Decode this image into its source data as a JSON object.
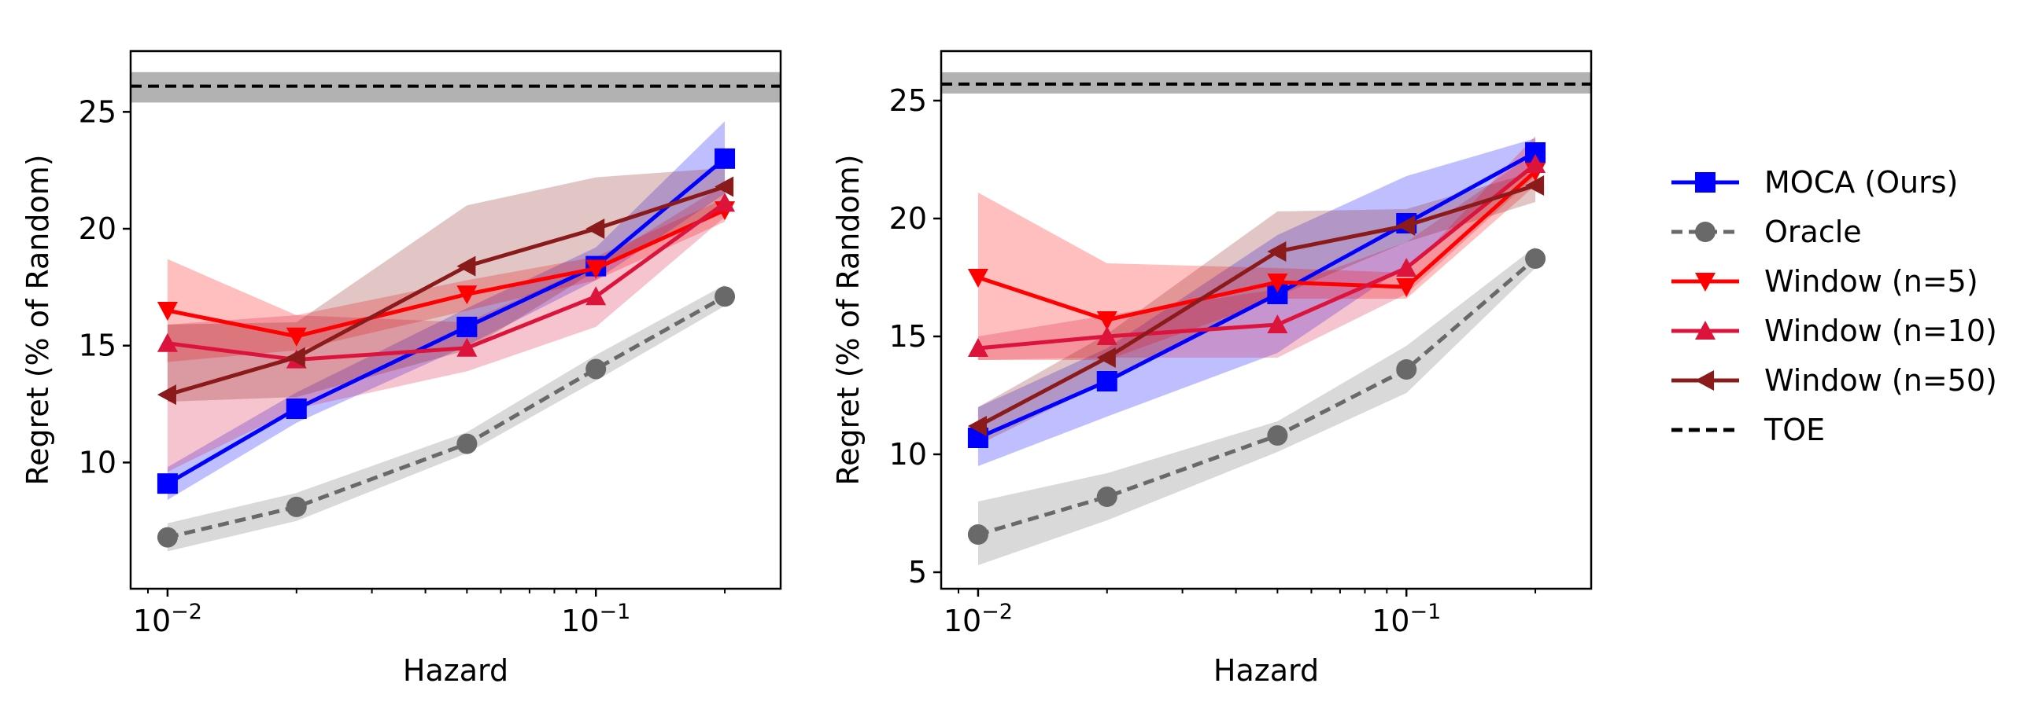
{
  "chart_data": [
    {
      "type": "line",
      "xscale": "log",
      "xlabel": "Hazard",
      "ylabel": "Regret (% of Random)",
      "xlim": [
        0.0082,
        0.27
      ],
      "ylim": [
        4.6,
        27.6
      ],
      "yticks": [
        10,
        15,
        20,
        25
      ],
      "xticks": [
        {
          "value": 0.01,
          "base": "10",
          "exp": "−2"
        },
        {
          "value": 0.1,
          "base": "10",
          "exp": "−1"
        }
      ],
      "x": [
        0.01,
        0.02,
        0.05,
        0.1,
        0.2
      ],
      "series": [
        {
          "name": "MOCA (Ours)",
          "color": "#0000ff",
          "marker": "square",
          "dash": "solid",
          "values": [
            9.1,
            12.3,
            15.8,
            18.4,
            23.0
          ],
          "band_lower": [
            8.4,
            11.7,
            15.0,
            17.8,
            21.5
          ],
          "band_upper": [
            9.8,
            13.0,
            16.6,
            19.2,
            24.6
          ]
        },
        {
          "name": "Oracle",
          "color": "#696969",
          "marker": "circle",
          "dash": "dashed",
          "values": [
            6.8,
            8.1,
            10.8,
            14.0,
            17.1
          ],
          "band_lower": [
            6.2,
            7.5,
            10.4,
            13.5,
            16.7
          ],
          "band_upper": [
            7.4,
            8.7,
            11.3,
            14.6,
            17.6
          ]
        },
        {
          "name": "Window (n=5)",
          "color": "#ff0000",
          "marker": "triangle-down",
          "dash": "solid",
          "values": [
            16.5,
            15.4,
            17.2,
            18.3,
            20.8
          ],
          "band_lower": [
            14.3,
            14.8,
            16.5,
            17.8,
            20.3
          ],
          "band_upper": [
            18.7,
            16.3,
            17.8,
            18.8,
            21.3
          ]
        },
        {
          "name": "Window (n=10)",
          "color": "#dc143c",
          "marker": "triangle-up",
          "dash": "solid",
          "values": [
            15.1,
            14.4,
            14.9,
            17.1,
            21.1
          ],
          "band_lower": [
            9.6,
            12.3,
            13.9,
            15.8,
            20.5
          ],
          "band_upper": [
            15.9,
            16.3,
            16.0,
            18.5,
            21.9
          ]
        },
        {
          "name": "Window (n=50)",
          "color": "#8b1a1a",
          "marker": "triangle-left",
          "dash": "solid",
          "values": [
            12.9,
            14.5,
            18.4,
            20.0,
            21.8
          ],
          "band_lower": [
            12.6,
            12.8,
            14.8,
            18.2,
            20.8
          ],
          "band_upper": [
            15.9,
            16.0,
            21.0,
            22.2,
            22.6
          ]
        }
      ],
      "reference": {
        "name": "TOE",
        "color": "#000000",
        "value": 26.1,
        "band": [
          25.4,
          26.7
        ]
      }
    },
    {
      "type": "line",
      "xscale": "log",
      "xlabel": "Hazard",
      "ylabel": "Regret (% of Random)",
      "xlim": [
        0.0082,
        0.27
      ],
      "ylim": [
        4.3,
        27.1
      ],
      "yticks": [
        5,
        10,
        15,
        20,
        25
      ],
      "xticks": [
        {
          "value": 0.01,
          "base": "10",
          "exp": "−2"
        },
        {
          "value": 0.1,
          "base": "10",
          "exp": "−1"
        }
      ],
      "x": [
        0.01,
        0.02,
        0.05,
        0.1,
        0.2
      ],
      "series": [
        {
          "name": "MOCA (Ours)",
          "color": "#0000ff",
          "marker": "square",
          "dash": "solid",
          "values": [
            10.7,
            13.1,
            16.8,
            19.8,
            22.8
          ],
          "band_lower": [
            9.5,
            11.6,
            14.3,
            18.0,
            22.3
          ],
          "band_upper": [
            12.0,
            14.5,
            19.3,
            21.8,
            23.4
          ]
        },
        {
          "name": "Oracle",
          "color": "#696969",
          "marker": "circle",
          "dash": "dashed",
          "values": [
            6.6,
            8.2,
            10.8,
            13.6,
            18.3
          ],
          "band_lower": [
            5.3,
            7.2,
            10.1,
            12.6,
            17.9
          ],
          "band_upper": [
            8.0,
            9.2,
            11.4,
            14.6,
            18.8
          ]
        },
        {
          "name": "Window (n=5)",
          "color": "#ff0000",
          "marker": "triangle-down",
          "dash": "solid",
          "values": [
            17.5,
            15.7,
            17.3,
            17.1,
            22.0
          ],
          "band_lower": [
            14.0,
            14.0,
            16.6,
            16.6,
            21.4
          ],
          "band_upper": [
            21.1,
            18.1,
            17.9,
            17.7,
            23.5
          ]
        },
        {
          "name": "Window (n=10)",
          "color": "#dc143c",
          "marker": "triangle-up",
          "dash": "solid",
          "values": [
            14.5,
            15.0,
            15.5,
            17.9,
            22.3
          ],
          "band_lower": [
            14.0,
            14.1,
            14.1,
            16.8,
            21.8
          ],
          "band_upper": [
            15.0,
            15.9,
            17.0,
            19.0,
            22.8
          ]
        },
        {
          "name": "Window (n=50)",
          "color": "#8b1a1a",
          "marker": "triangle-left",
          "dash": "solid",
          "values": [
            11.2,
            14.1,
            18.6,
            19.7,
            21.4
          ],
          "band_lower": [
            10.4,
            13.1,
            16.7,
            19.0,
            20.7
          ],
          "band_upper": [
            12.0,
            15.1,
            20.3,
            20.4,
            22.0
          ]
        }
      ],
      "reference": {
        "name": "TOE",
        "color": "#000000",
        "value": 25.7,
        "band": [
          25.3,
          26.2
        ]
      }
    }
  ],
  "legend": {
    "position": "right",
    "entries": [
      {
        "label": "MOCA (Ours)",
        "color": "#0000ff",
        "marker": "square",
        "dash": "solid"
      },
      {
        "label": "Oracle",
        "color": "#696969",
        "marker": "circle",
        "dash": "dashed"
      },
      {
        "label": "Window (n=5)",
        "color": "#ff0000",
        "marker": "triangle-down",
        "dash": "solid"
      },
      {
        "label": "Window (n=10)",
        "color": "#dc143c",
        "marker": "triangle-up",
        "dash": "solid"
      },
      {
        "label": "Window (n=50)",
        "color": "#8b1a1a",
        "marker": "triangle-left",
        "dash": "solid"
      },
      {
        "label": "TOE",
        "color": "#000000",
        "marker": "none",
        "dash": "dashed"
      }
    ]
  }
}
